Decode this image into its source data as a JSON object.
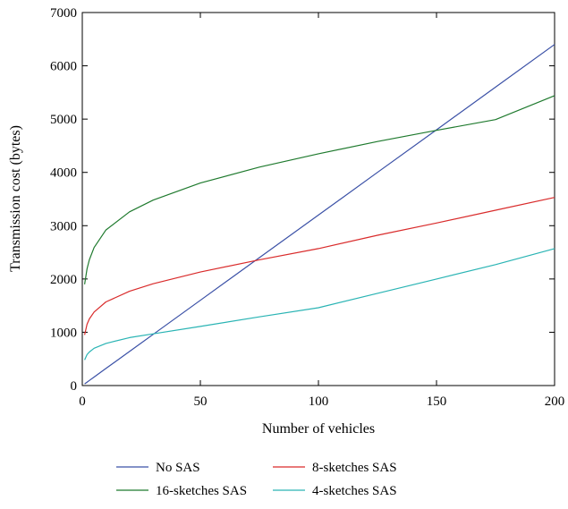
{
  "chart_data": {
    "type": "line",
    "xlabel": "Number of vehicles",
    "ylabel": "Transmission cost (bytes)",
    "xlim": [
      0,
      200
    ],
    "ylim": [
      0,
      7000
    ],
    "xticks": [
      0,
      50,
      100,
      150,
      200
    ],
    "yticks": [
      0,
      1000,
      2000,
      3000,
      4000,
      5000,
      6000,
      7000
    ],
    "grid": false,
    "legend_position": "bottom",
    "x": [
      1,
      2,
      3,
      5,
      10,
      20,
      30,
      50,
      75,
      100,
      125,
      150,
      175,
      200
    ],
    "series": [
      {
        "name": "No SAS",
        "color": "#3a50a6",
        "values": [
          32,
          64,
          96,
          160,
          320,
          640,
          960,
          1600,
          2400,
          3200,
          4000,
          4800,
          5600,
          6400
        ]
      },
      {
        "name": "16-sketches SAS",
        "color": "#1f7a2e",
        "values": [
          1900,
          2190,
          2360,
          2590,
          2920,
          3260,
          3480,
          3800,
          4100,
          4350,
          4580,
          4790,
          4990,
          5440
        ]
      },
      {
        "name": "8-sketches SAS",
        "color": "#d92b2b",
        "values": [
          950,
          1150,
          1250,
          1380,
          1570,
          1770,
          1910,
          2130,
          2360,
          2570,
          2820,
          3050,
          3290,
          3530
        ]
      },
      {
        "name": "4-sketches SAS",
        "color": "#2ab4b4",
        "values": [
          480,
          580,
          630,
          700,
          790,
          900,
          970,
          1110,
          1290,
          1460,
          1730,
          2000,
          2270,
          2570
        ]
      }
    ]
  }
}
